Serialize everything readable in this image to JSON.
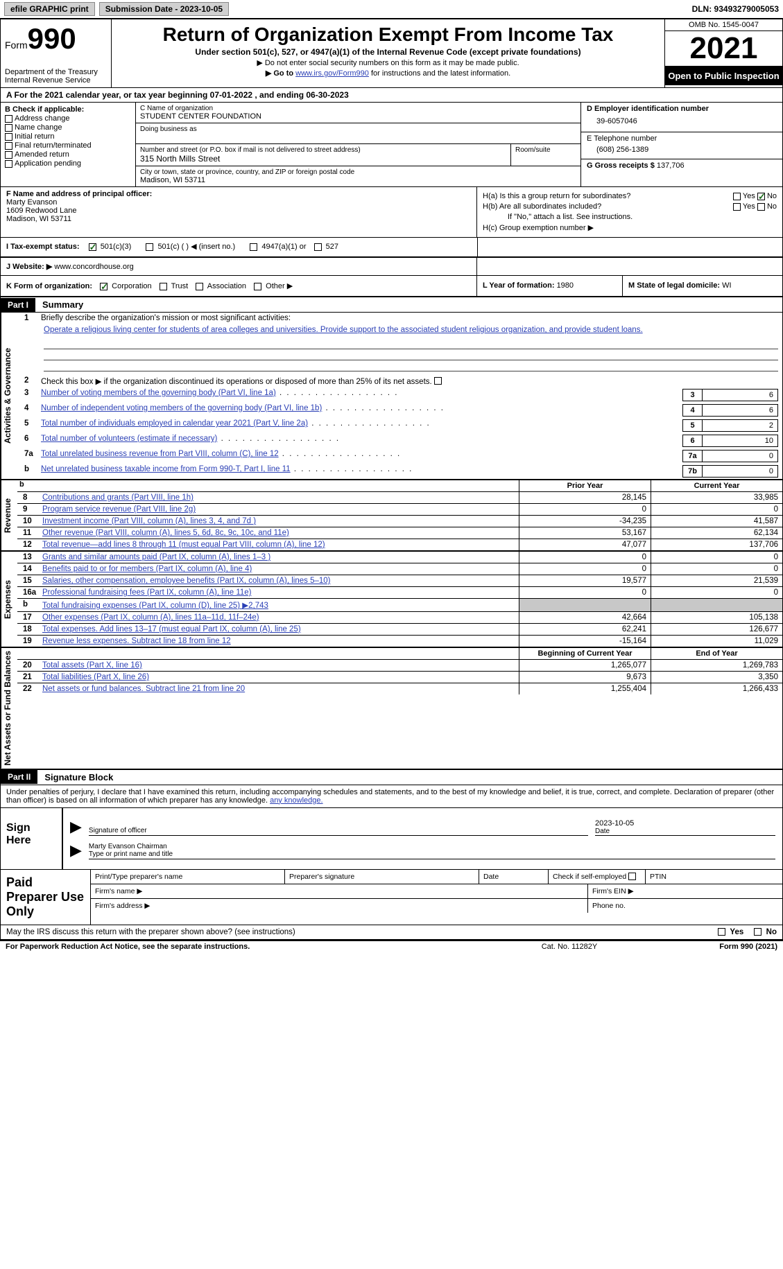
{
  "topbar": {
    "efile_label": "efile GRAPHIC print",
    "submission_label": "Submission Date - 2023-10-05",
    "dln_label": "DLN: 93493279005053"
  },
  "header": {
    "form_prefix": "Form",
    "form_number": "990",
    "dept": "Department of the Treasury",
    "irs": "Internal Revenue Service",
    "title": "Return of Organization Exempt From Income Tax",
    "sub1": "Under section 501(c), 527, or 4947(a)(1) of the Internal Revenue Code (except private foundations)",
    "sub2": "▶ Do not enter social security numbers on this form as it may be made public.",
    "sub3_pre": "▶ Go to ",
    "sub3_link": "www.irs.gov/Form990",
    "sub3_post": " for instructions and the latest information.",
    "omb": "OMB No. 1545-0047",
    "year": "2021",
    "open_pub": "Open to Public Inspection"
  },
  "cal_year": "A For the 2021 calendar year, or tax year beginning 07-01-2022   , and ending 06-30-2023",
  "section_b": {
    "label": "B Check if applicable:",
    "items": [
      "Address change",
      "Name change",
      "Initial return",
      "Final return/terminated",
      "Amended return",
      "Application pending"
    ]
  },
  "section_c": {
    "name_label": "C Name of organization",
    "name": "STUDENT CENTER FOUNDATION",
    "dba_label": "Doing business as",
    "street_label": "Number and street (or P.O. box if mail is not delivered to street address)",
    "street": "315 North Mills Street",
    "room_label": "Room/suite",
    "city_label": "City or town, state or province, country, and ZIP or foreign postal code",
    "city": "Madison, WI  53711"
  },
  "section_d": {
    "ein_label": "D Employer identification number",
    "ein": "39-6057046",
    "tel_label": "E Telephone number",
    "tel": "(608) 256-1389",
    "gross_label": "G Gross receipts $ ",
    "gross": "137,706"
  },
  "section_f": {
    "label": "F  Name and address of principal officer:",
    "name": "Marty Evanson",
    "addr1": "1609 Redwood Lane",
    "addr2": "Madison, WI  53711"
  },
  "section_h": {
    "ha": "H(a)  Is this a group return for subordinates?",
    "hb": "H(b)  Are all subordinates included?",
    "hb_note": "If \"No,\" attach a list. See instructions.",
    "hc": "H(c)  Group exemption number ▶",
    "yes": "Yes",
    "no": "No"
  },
  "tax_status": {
    "label": "I   Tax-exempt status:",
    "a": "501(c)(3)",
    "b": "501(c) (  ) ◀ (insert no.)",
    "c": "4947(a)(1) or",
    "d": "527"
  },
  "website": {
    "label": "J  Website: ▶  ",
    "value": "www.concordhouse.org"
  },
  "k_org": {
    "label": "K Form of organization:",
    "corp": "Corporation",
    "trust": "Trust",
    "assoc": "Association",
    "other": "Other ▶",
    "l_label": "L Year of formation: ",
    "l_val": "1980",
    "m_label": "M State of legal domicile: ",
    "m_val": "WI"
  },
  "part1": {
    "tag": "Part I",
    "title": "Summary"
  },
  "summary": {
    "q1_label": "1",
    "q1_text": "Briefly describe the organization's mission or most significant activities:",
    "q1_body": "Operate a religious living center for students of area colleges and universities. Provide support to the associated student religious organization, and provide student loans.",
    "q2_num": "2",
    "q2_text": "Check this box ▶        if the organization discontinued its operations or disposed of more than 25% of its net assets.",
    "vlabel_ag": "Activities & Governance",
    "vlabel_rev": "Revenue",
    "vlabel_exp": "Expenses",
    "vlabel_na": "Net Assets or Fund Balances",
    "lines_gov": [
      {
        "n": "3",
        "d": "Number of voting members of the governing body (Part VI, line 1a)",
        "box": "3",
        "v": "6"
      },
      {
        "n": "4",
        "d": "Number of independent voting members of the governing body (Part VI, line 1b)",
        "box": "4",
        "v": "6"
      },
      {
        "n": "5",
        "d": "Total number of individuals employed in calendar year 2021 (Part V, line 2a)",
        "box": "5",
        "v": "2"
      },
      {
        "n": "6",
        "d": "Total number of volunteers (estimate if necessary)",
        "box": "6",
        "v": "10"
      },
      {
        "n": "7a",
        "d": "Total unrelated business revenue from Part VIII, column (C), line 12",
        "box": "7a",
        "v": "0"
      },
      {
        "n": "b",
        "d": "Net unrelated business taxable income from Form 990-T, Part I, line 11",
        "box": "7b",
        "v": "0"
      }
    ],
    "py_label": "Prior Year",
    "cy_label": "Current Year",
    "rev_rows": [
      {
        "n": "8",
        "d": "Contributions and grants (Part VIII, line 1h)",
        "py": "28,145",
        "cy": "33,985"
      },
      {
        "n": "9",
        "d": "Program service revenue (Part VIII, line 2g)",
        "py": "0",
        "cy": "0"
      },
      {
        "n": "10",
        "d": "Investment income (Part VIII, column (A), lines 3, 4, and 7d )",
        "py": "-34,235",
        "cy": "41,587"
      },
      {
        "n": "11",
        "d": "Other revenue (Part VIII, column (A), lines 5, 6d, 8c, 9c, 10c, and 11e)",
        "py": "53,167",
        "cy": "62,134"
      },
      {
        "n": "12",
        "d": "Total revenue—add lines 8 through 11 (must equal Part VIII, column (A), line 12)",
        "py": "47,077",
        "cy": "137,706"
      }
    ],
    "exp_rows": [
      {
        "n": "13",
        "d": "Grants and similar amounts paid (Part IX, column (A), lines 1–3 )",
        "py": "0",
        "cy": "0"
      },
      {
        "n": "14",
        "d": "Benefits paid to or for members (Part IX, column (A), line 4)",
        "py": "0",
        "cy": "0"
      },
      {
        "n": "15",
        "d": "Salaries, other compensation, employee benefits (Part IX, column (A), lines 5–10)",
        "py": "19,577",
        "cy": "21,539"
      },
      {
        "n": "16a",
        "d": "Professional fundraising fees (Part IX, column (A), line 11e)",
        "py": "0",
        "cy": "0"
      },
      {
        "n": "b",
        "d": "Total fundraising expenses (Part IX, column (D), line 25) ▶2,743",
        "py": "GRAY",
        "cy": "GRAY"
      },
      {
        "n": "17",
        "d": "Other expenses (Part IX, column (A), lines 11a–11d, 11f–24e)",
        "py": "42,664",
        "cy": "105,138"
      },
      {
        "n": "18",
        "d": "Total expenses. Add lines 13–17 (must equal Part IX, column (A), line 25)",
        "py": "62,241",
        "cy": "126,677"
      },
      {
        "n": "19",
        "d": "Revenue less expenses. Subtract line 18 from line 12",
        "py": "-15,164",
        "cy": "11,029"
      }
    ],
    "boy_label": "Beginning of Current Year",
    "eoy_label": "End of Year",
    "na_rows": [
      {
        "n": "20",
        "d": "Total assets (Part X, line 16)",
        "py": "1,265,077",
        "cy": "1,269,783"
      },
      {
        "n": "21",
        "d": "Total liabilities (Part X, line 26)",
        "py": "9,673",
        "cy": "3,350"
      },
      {
        "n": "22",
        "d": "Net assets or fund balances. Subtract line 21 from line 20",
        "py": "1,255,404",
        "cy": "1,266,433"
      }
    ]
  },
  "part2": {
    "tag": "Part II",
    "title": "Signature Block"
  },
  "sig": {
    "intro": "Under penalties of perjury, I declare that I have examined this return, including accompanying schedules and statements, and to the best of my knowledge and belief, it is true, correct, and complete. Declaration of preparer (other than officer) is based on all information of which preparer has any knowledge.",
    "sign_here": "Sign Here",
    "sig_officer": "Signature of officer",
    "date_label": "Date",
    "date_val": "2023-10-05",
    "name_title": "Marty Evanson  Chairman",
    "type_print": "Type or print name and title"
  },
  "paid": {
    "label": "Paid Preparer Use Only",
    "c1": "Print/Type preparer's name",
    "c2": "Preparer's signature",
    "c3": "Date",
    "c4": "Check        if self-employed",
    "c5": "PTIN",
    "firm_name": "Firm's name    ▶",
    "firm_ein": "Firm's EIN ▶",
    "firm_addr": "Firm's address ▶",
    "phone": "Phone no."
  },
  "discuss": {
    "q": "May the IRS discuss this return with the preparer shown above? (see instructions)",
    "yes": "Yes",
    "no": "No"
  },
  "footer": {
    "l": "For Paperwork Reduction Act Notice, see the separate instructions.",
    "m": "Cat. No. 11282Y",
    "r": "Form 990 (2021)"
  }
}
